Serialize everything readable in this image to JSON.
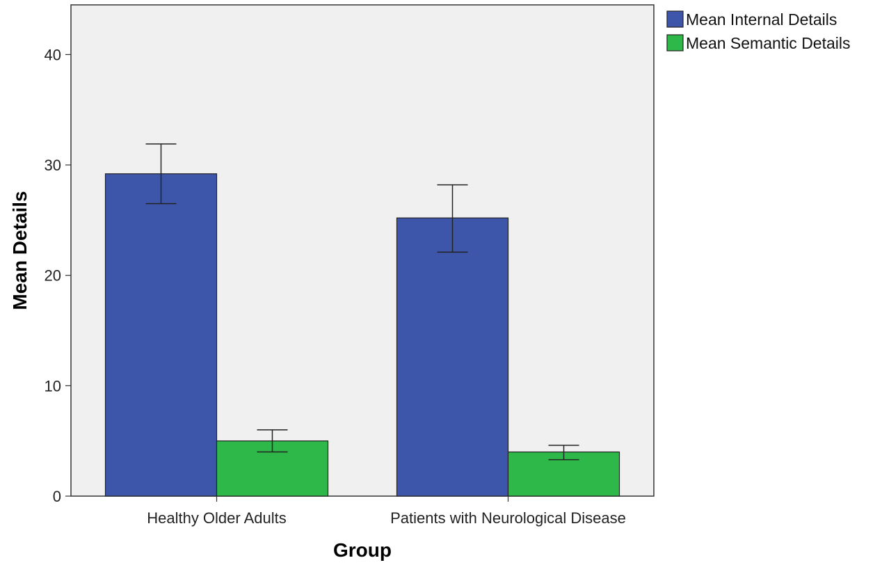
{
  "chart_data": {
    "type": "bar",
    "title": "",
    "xlabel": "Group",
    "ylabel": "Mean Details",
    "categories": [
      "Healthy Older Adults",
      "Patients with Neurological Disease"
    ],
    "series": [
      {
        "name": "Mean Internal Details",
        "color": "#3d56a9",
        "values": [
          29.2,
          25.2
        ],
        "error_low": [
          26.5,
          22.1
        ],
        "error_high": [
          31.9,
          28.2
        ]
      },
      {
        "name": "Mean Semantic Details",
        "color": "#2eb84a",
        "values": [
          5.0,
          4.0
        ],
        "error_low": [
          4.0,
          3.3
        ],
        "error_high": [
          6.0,
          4.6
        ]
      }
    ],
    "ylim": [
      0,
      44.5
    ],
    "yticks": [
      0,
      10,
      20,
      30,
      40
    ],
    "grid": false,
    "legend_position": "outside-top-right"
  }
}
